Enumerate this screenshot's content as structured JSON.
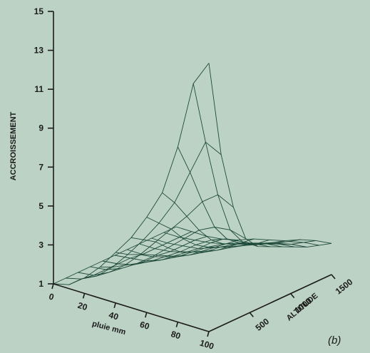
{
  "chart_data": {
    "type": "surface3d",
    "title": "",
    "panel_label": "(b)",
    "zlabel": "ACCROISSEMENT",
    "xlabel": "pluie mm",
    "ylabel": "ALTITUDE",
    "z_ticks": [
      "1",
      "3",
      "5",
      "7",
      "9",
      "11",
      "13",
      "15"
    ],
    "z_tick_values": [
      1,
      3,
      5,
      7,
      9,
      11,
      13,
      15
    ],
    "x_ticks": [
      "0",
      "20",
      "40",
      "60",
      "80",
      "100"
    ],
    "x_tick_values": [
      0,
      20,
      40,
      60,
      80,
      100
    ],
    "y_ticks": [
      "500",
      "1000",
      "1500"
    ],
    "y_tick_values": [
      500,
      1000,
      1500
    ],
    "zlim": [
      1,
      15
    ],
    "xlim": [
      0,
      100
    ],
    "ylim": [
      0,
      1500
    ],
    "surface": {
      "x": [
        0,
        10,
        20,
        30,
        40,
        50,
        60,
        70,
        80,
        90,
        100
      ],
      "y": [
        0,
        150,
        300,
        450,
        600,
        750,
        900,
        1050,
        1200,
        1350,
        1500
      ],
      "z": [
        [
          1.0,
          1.2,
          1.8,
          2.6,
          3.6,
          4.6,
          5.9,
          7.4,
          10.0,
          13.5,
          14.8
        ],
        [
          1.0,
          1.2,
          1.6,
          2.3,
          3.2,
          4.2,
          5.3,
          6.6,
          8.4,
          10.2,
          9.8
        ],
        [
          1.0,
          1.1,
          1.5,
          2.1,
          2.9,
          3.8,
          4.7,
          5.6,
          6.6,
          7.2,
          6.8
        ],
        [
          1.0,
          1.1,
          1.4,
          1.9,
          2.5,
          3.2,
          3.9,
          4.6,
          5.0,
          5.1,
          4.9
        ],
        [
          1.0,
          1.1,
          1.3,
          1.7,
          2.2,
          2.7,
          3.3,
          3.8,
          4.1,
          4.2,
          4.2
        ],
        [
          1.0,
          1.1,
          1.2,
          1.5,
          1.9,
          2.4,
          2.9,
          3.3,
          3.6,
          3.8,
          3.9
        ],
        [
          1.0,
          1.0,
          1.2,
          1.4,
          1.7,
          2.1,
          2.6,
          3.0,
          3.3,
          3.5,
          3.6
        ],
        [
          1.0,
          1.0,
          1.1,
          1.3,
          1.6,
          1.9,
          2.3,
          2.7,
          3.0,
          3.2,
          3.3
        ],
        [
          1.0,
          1.0,
          1.1,
          1.2,
          1.5,
          1.8,
          2.1,
          2.4,
          2.7,
          2.9,
          3.0
        ],
        [
          1.0,
          1.0,
          1.1,
          1.2,
          1.4,
          1.7,
          1.9,
          2.2,
          2.5,
          2.7,
          2.8
        ],
        [
          1.0,
          1.0,
          1.0,
          1.1,
          1.3,
          1.6,
          1.8,
          2.0,
          2.3,
          2.5,
          2.6
        ]
      ]
    }
  }
}
